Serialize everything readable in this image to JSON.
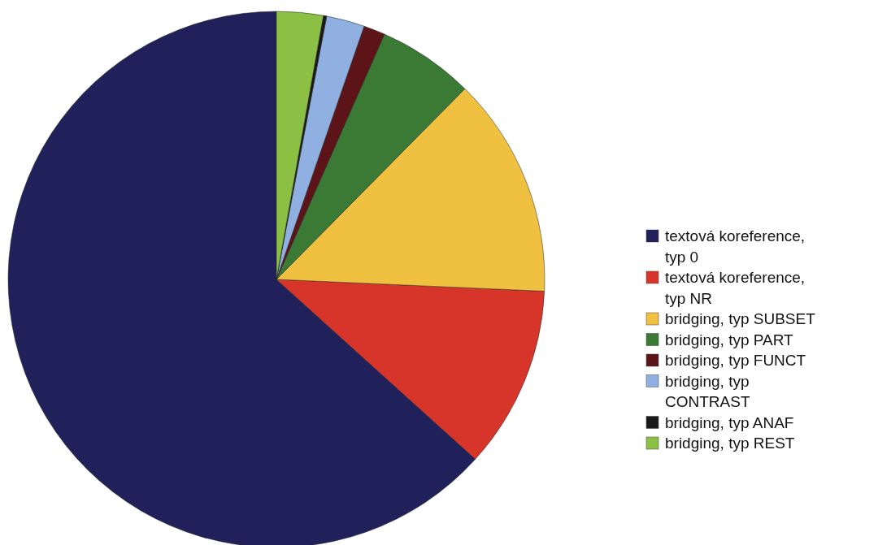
{
  "chart_data": {
    "type": "pie",
    "categories": [
      "textová koreference, typ 0",
      "textová koreference, typ NR",
      "bridging, typ SUBSET",
      "bridging, typ PART",
      "bridging, typ FUNCT",
      "bridging, typ CONTRAST",
      "bridging, typ ANAF",
      "bridging, typ REST"
    ],
    "values": [
      63.3,
      11.0,
      13.3,
      5.8,
      1.3,
      2.3,
      0.2,
      2.8
    ],
    "colors": [
      "#20215a",
      "#d8352a",
      "#f0c040",
      "#3a7a35",
      "#5c1418",
      "#8fb0e0",
      "#1a1a1a",
      "#8cc045"
    ],
    "legend": "right"
  }
}
